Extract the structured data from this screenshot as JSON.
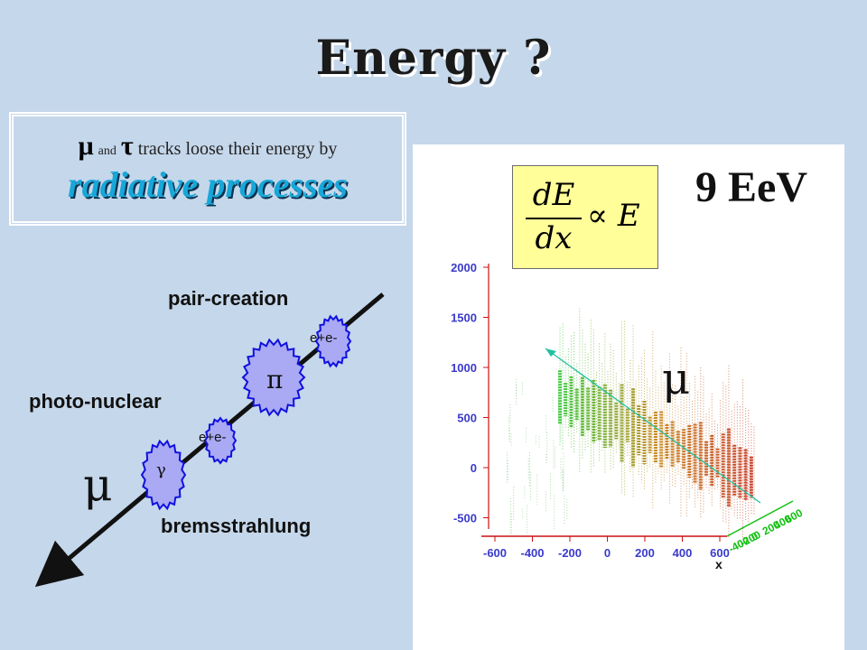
{
  "title": "Energy ?",
  "textbox": {
    "mu": "μ",
    "and": "and",
    "tau": "τ",
    "rest": "tracks loose their energy by",
    "highlight": "radiative processes"
  },
  "diagram": {
    "pair_creation": "pair-creation",
    "photo_nuclear": "photo-nuclear",
    "bremsstrahlung": "bremsstrahlung",
    "mu_symbol": "μ",
    "blob_epem_upper": "e+e-",
    "blob_pi": "π",
    "blob_epem_lower": "e+e-",
    "blob_gamma": "γ"
  },
  "plot": {
    "energy": "9 EeV",
    "mu_label": "μ",
    "formula_top": "dE",
    "formula_bottom": "dx",
    "formula_rhs": "∝ E",
    "y_ticks": [
      "2000",
      "1500",
      "1000",
      "500",
      "0",
      "-500"
    ],
    "x_ticks": [
      "-600",
      "-400",
      "-200",
      "0",
      "200",
      "400",
      "600"
    ],
    "x_axis_label": "x",
    "z_ticks": [
      "600",
      "400",
      "200",
      "0",
      "-200",
      "-400"
    ],
    "colors": {
      "tick_text": "#3a3acb",
      "x_axis": "#d01010",
      "z_axis": "#10c010",
      "track": "#20c0a0"
    }
  }
}
